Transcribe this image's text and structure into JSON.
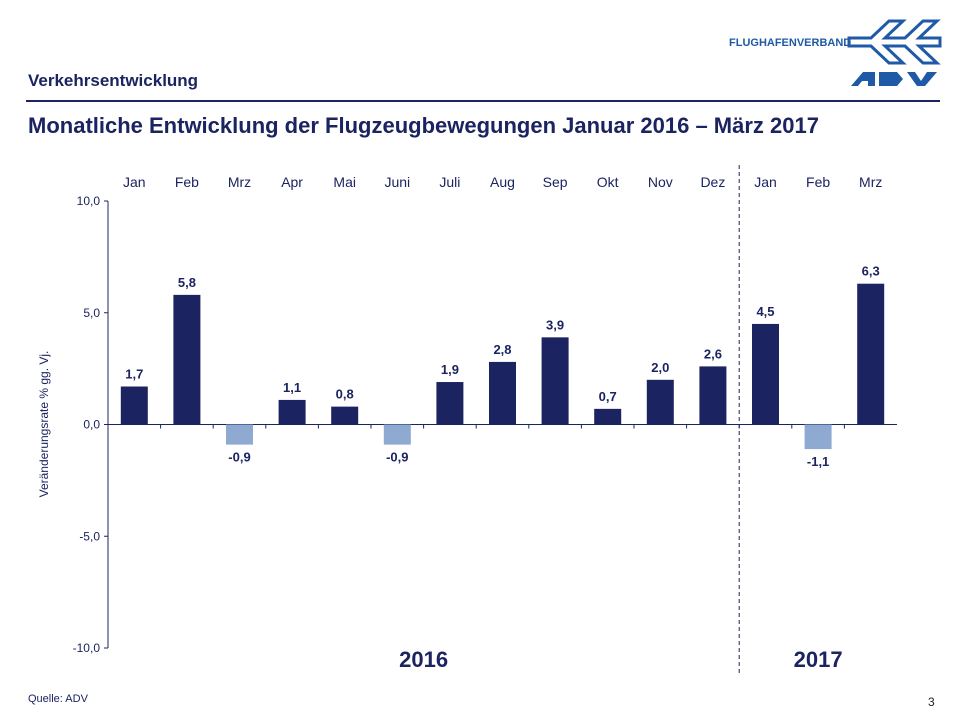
{
  "header": {
    "section": "Verkehrsentwicklung",
    "title": "Monatliche Entwicklung der Flugzeugbewegungen Januar 2016 – März 2017",
    "logo_text": "FLUGHAFENVERBAND",
    "logo_mark": "ADV"
  },
  "footer": {
    "source": "Quelle: ADV",
    "page": "3"
  },
  "colors": {
    "positive": "#1b2460",
    "negative": "#8eaad0",
    "text": "#1b2460"
  },
  "chart_data": {
    "type": "bar",
    "title": "Monatliche Entwicklung der Flugzeugbewegungen Januar 2016 – März 2017",
    "ylabel": "Veränderungsrate % gg. Vj.",
    "ylim": [
      -10,
      10
    ],
    "yticks": [
      10,
      5,
      0,
      -5,
      -10
    ],
    "ytick_labels": [
      "10,0",
      "5,0",
      "0,0",
      "-5,0",
      "-10,0"
    ],
    "categories": [
      "Jan",
      "Feb",
      "Mrz",
      "Apr",
      "Mai",
      "Juni",
      "Juli",
      "Aug",
      "Sep",
      "Okt",
      "Nov",
      "Dez",
      "Jan",
      "Feb",
      "Mrz"
    ],
    "values": [
      1.7,
      5.8,
      -0.9,
      1.1,
      0.8,
      -0.9,
      1.9,
      2.8,
      3.9,
      0.7,
      2.0,
      2.6,
      4.5,
      -1.1,
      6.3
    ],
    "value_labels": [
      "1,7",
      "5,8",
      "-0,9",
      "1,1",
      "0,8",
      "-0,9",
      "1,9",
      "2,8",
      "3,9",
      "0,7",
      "2,0",
      "2,6",
      "4,5",
      "-1,1",
      "6,3"
    ],
    "groups": [
      {
        "label": "2016",
        "count": 12
      },
      {
        "label": "2017",
        "count": 3
      }
    ],
    "grid": false
  }
}
